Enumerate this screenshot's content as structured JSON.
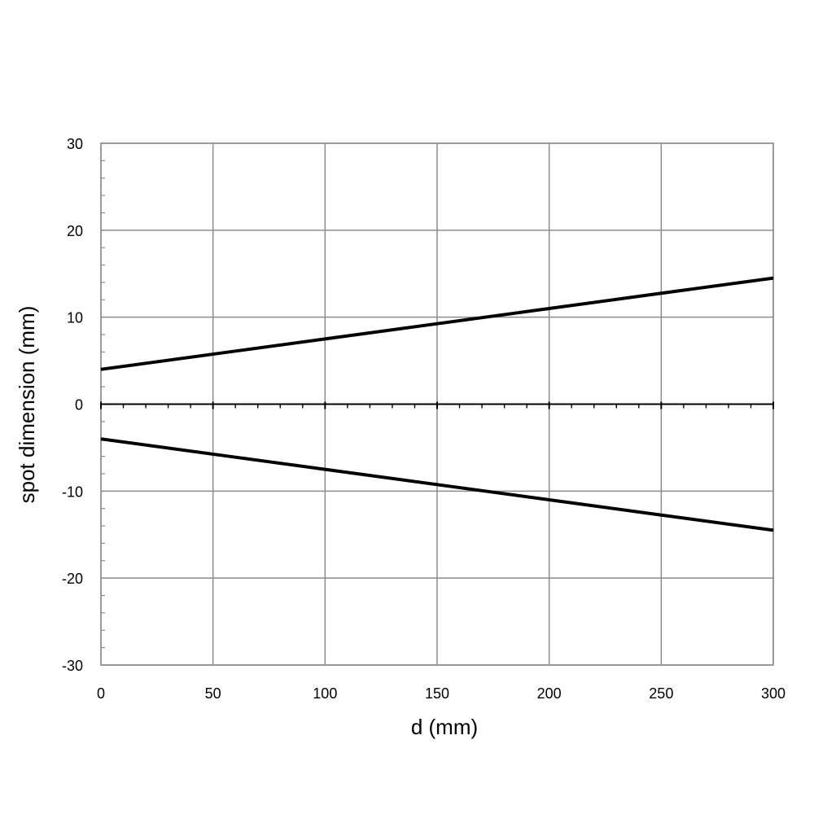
{
  "chart_data": {
    "type": "line",
    "title": "",
    "xlabel": "d (mm)",
    "ylabel": "spot dimension (mm)",
    "xlim": [
      0,
      300
    ],
    "ylim": [
      -30,
      30
    ],
    "x_ticks": [
      0,
      50,
      100,
      150,
      200,
      250,
      300
    ],
    "y_ticks": [
      -30,
      -20,
      -10,
      0,
      10,
      20,
      30
    ],
    "x_tick_labels": [
      "0",
      "50",
      "100",
      "150",
      "200",
      "250",
      "300"
    ],
    "y_tick_labels": [
      "-30",
      "-20",
      "-10",
      "0",
      "10",
      "20",
      "30"
    ],
    "grid": true,
    "legend": "none",
    "series": [
      {
        "x": [
          0,
          50,
          100,
          150,
          200,
          250,
          300
        ],
        "y": [
          4.0,
          5.75,
          7.5,
          9.25,
          11.0,
          12.75,
          14.5
        ],
        "color": "#000000"
      },
      {
        "x": [
          0,
          50,
          100,
          150,
          200,
          250,
          300
        ],
        "y": [
          -4.0,
          -5.75,
          -7.5,
          -9.25,
          -11.0,
          -12.75,
          -14.5
        ],
        "color": "#000000"
      }
    ]
  }
}
